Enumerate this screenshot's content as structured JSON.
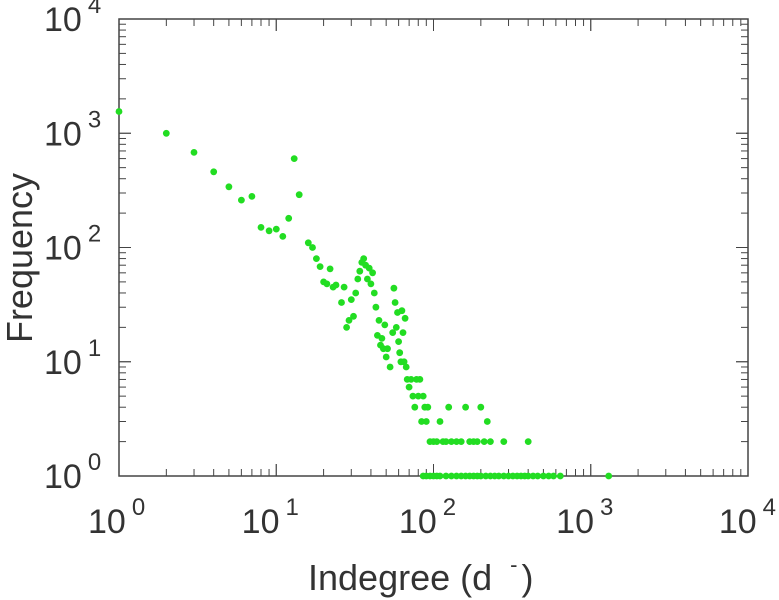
{
  "chart_data": {
    "type": "scatter",
    "xlabel": "Indegree (d ",
    "xlabel_superscript": "-",
    "xlabel_close": ")",
    "ylabel": "Frequency",
    "x_scale": "log",
    "y_scale": "log",
    "xlim": [
      1,
      10000
    ],
    "ylim": [
      1,
      10000
    ],
    "x_ticks": [
      {
        "base": "10",
        "exp": "0"
      },
      {
        "base": "10",
        "exp": "1"
      },
      {
        "base": "10",
        "exp": "2"
      },
      {
        "base": "10",
        "exp": "3"
      },
      {
        "base": "10",
        "exp": "4"
      }
    ],
    "y_ticks": [
      {
        "base": "10",
        "exp": "0"
      },
      {
        "base": "10",
        "exp": "1"
      },
      {
        "base": "10",
        "exp": "2"
      },
      {
        "base": "10",
        "exp": "3"
      },
      {
        "base": "10",
        "exp": "4"
      }
    ],
    "grid": false,
    "point_color": "#22dd22",
    "series": [
      {
        "points": [
          [
            1,
            1550
          ],
          [
            2,
            1000
          ],
          [
            3,
            680
          ],
          [
            4,
            460
          ],
          [
            5,
            340
          ],
          [
            6,
            260
          ],
          [
            7,
            280
          ],
          [
            8,
            150
          ],
          [
            9,
            140
          ],
          [
            10,
            145
          ],
          [
            11,
            125
          ],
          [
            12,
            180
          ],
          [
            13,
            600
          ],
          [
            14,
            290
          ],
          [
            16,
            110
          ],
          [
            17,
            100
          ],
          [
            18,
            80
          ],
          [
            19,
            68
          ],
          [
            20,
            50
          ],
          [
            21,
            48
          ],
          [
            22,
            65
          ],
          [
            23,
            45
          ],
          [
            24,
            47
          ],
          [
            26,
            33
          ],
          [
            27,
            45
          ],
          [
            28,
            20
          ],
          [
            29,
            23
          ],
          [
            30,
            35
          ],
          [
            31,
            25
          ],
          [
            32,
            40
          ],
          [
            33,
            53
          ],
          [
            34,
            62
          ],
          [
            35,
            74
          ],
          [
            36,
            80
          ],
          [
            37,
            70
          ],
          [
            38,
            53
          ],
          [
            39,
            66
          ],
          [
            40,
            48
          ],
          [
            41,
            60
          ],
          [
            42,
            40
          ],
          [
            43,
            30
          ],
          [
            44,
            17
          ],
          [
            45,
            23
          ],
          [
            46,
            14
          ],
          [
            47,
            16
          ],
          [
            48,
            13
          ],
          [
            49,
            21
          ],
          [
            50,
            11
          ],
          [
            51,
            13
          ],
          [
            53,
            9
          ],
          [
            55,
            18
          ],
          [
            56,
            44
          ],
          [
            57,
            33
          ],
          [
            58,
            20
          ],
          [
            59,
            27
          ],
          [
            60,
            15
          ],
          [
            61,
            12
          ],
          [
            62,
            10
          ],
          [
            63,
            28
          ],
          [
            64,
            18
          ],
          [
            65,
            10
          ],
          [
            66,
            24
          ],
          [
            67,
            9
          ],
          [
            68,
            7
          ],
          [
            70,
            6
          ],
          [
            72,
            7
          ],
          [
            74,
            5
          ],
          [
            76,
            4
          ],
          [
            78,
            7
          ],
          [
            80,
            5
          ],
          [
            82,
            7
          ],
          [
            84,
            3
          ],
          [
            86,
            5
          ],
          [
            88,
            4
          ],
          [
            90,
            3
          ],
          [
            92,
            4
          ],
          [
            95,
            2
          ],
          [
            100,
            2
          ],
          [
            105,
            2
          ],
          [
            110,
            3
          ],
          [
            115,
            2
          ],
          [
            120,
            2
          ],
          [
            125,
            4
          ],
          [
            130,
            2
          ],
          [
            140,
            2
          ],
          [
            150,
            2
          ],
          [
            160,
            4
          ],
          [
            170,
            2
          ],
          [
            180,
            2
          ],
          [
            190,
            2
          ],
          [
            200,
            4
          ],
          [
            210,
            2
          ],
          [
            220,
            3
          ],
          [
            230,
            2
          ],
          [
            280,
            2
          ],
          [
            400,
            2
          ],
          [
            86,
            1
          ],
          [
            90,
            1
          ],
          [
            95,
            1
          ],
          [
            100,
            1
          ],
          [
            105,
            1
          ],
          [
            110,
            1
          ],
          [
            120,
            1
          ],
          [
            130,
            1
          ],
          [
            140,
            1
          ],
          [
            150,
            1
          ],
          [
            160,
            1
          ],
          [
            170,
            1
          ],
          [
            180,
            1
          ],
          [
            190,
            1
          ],
          [
            200,
            1
          ],
          [
            215,
            1
          ],
          [
            230,
            1
          ],
          [
            245,
            1
          ],
          [
            260,
            1
          ],
          [
            280,
            1
          ],
          [
            300,
            1
          ],
          [
            320,
            1
          ],
          [
            340,
            1
          ],
          [
            360,
            1
          ],
          [
            380,
            1
          ],
          [
            400,
            1
          ],
          [
            430,
            1
          ],
          [
            460,
            1
          ],
          [
            500,
            1
          ],
          [
            540,
            1
          ],
          [
            580,
            1
          ],
          [
            640,
            1
          ],
          [
            1300,
            1
          ]
        ]
      }
    ]
  }
}
